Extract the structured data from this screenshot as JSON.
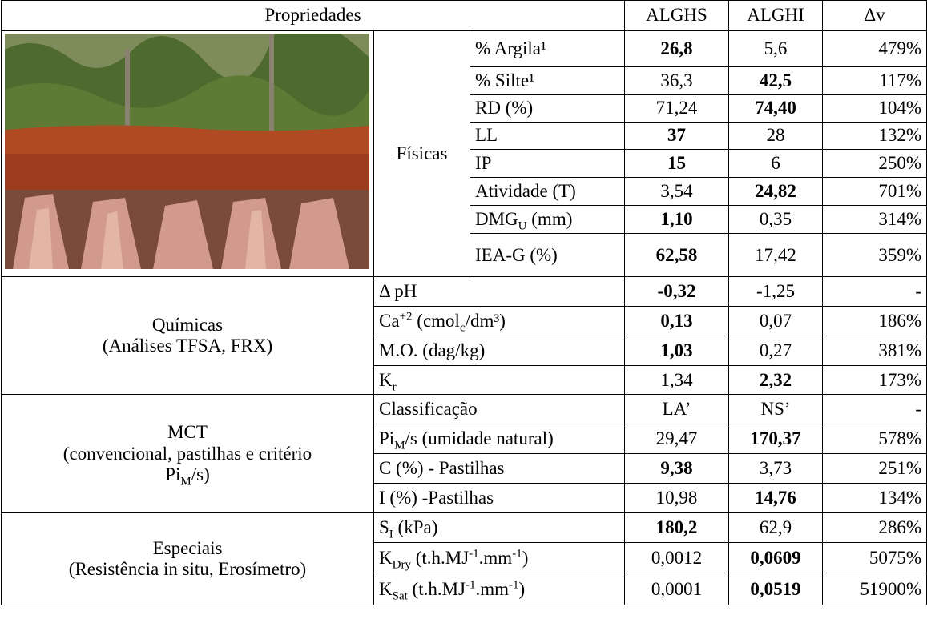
{
  "header": {
    "title": "Propriedades",
    "columns": [
      "ALGHS",
      "ALGHI",
      "Δv"
    ]
  },
  "sections": [
    {
      "name": [
        [
          "Físicas"
        ]
      ],
      "rows": [
        {
          "label": [
            "% Argila¹"
          ],
          "values": [
            "26,8",
            "5,6",
            "479%"
          ],
          "bold": 0
        },
        {
          "label": [
            "% Silte¹"
          ],
          "values": [
            "36,3",
            "42,5",
            "117%"
          ],
          "bold": 1
        },
        {
          "label": [
            "RD (%)"
          ],
          "values": [
            "71,24",
            "74,40",
            "104%"
          ],
          "bold": 1
        },
        {
          "label": [
            "LL"
          ],
          "values": [
            "37",
            "28",
            "132%"
          ],
          "bold": 0
        },
        {
          "label": [
            "IP"
          ],
          "values": [
            "15",
            "6",
            "250%"
          ],
          "bold": 0
        },
        {
          "label": [
            "Atividade (T)"
          ],
          "values": [
            "3,54",
            "24,82",
            "701%"
          ],
          "bold": 1
        },
        {
          "label": [
            "DMG",
            {
              "sub": "U"
            },
            " (mm)"
          ],
          "values": [
            "1,10",
            "0,35",
            "314%"
          ],
          "bold": 0
        },
        {
          "label": [
            "IEA-G (%)"
          ],
          "values": [
            "62,58",
            "17,42",
            "359%"
          ],
          "bold": 0
        }
      ]
    },
    {
      "name": [
        [
          "Químicas"
        ],
        [
          "(Análises TFSA, FRX)"
        ]
      ],
      "rows": [
        {
          "label": [
            "Δ pH"
          ],
          "values": [
            "-0,32",
            "-1,25",
            "-"
          ],
          "bold": 0
        },
        {
          "label": [
            "Ca",
            {
              "sup": "+2"
            },
            " (cmol",
            {
              "sub": "c"
            },
            "/dm³)"
          ],
          "values": [
            "0,13",
            "0,07",
            "186%"
          ],
          "bold": 0
        },
        {
          "label": [
            "M.O. (dag/kg)"
          ],
          "values": [
            "1,03",
            "0,27",
            "381%"
          ],
          "bold": 0
        },
        {
          "label": [
            "K",
            {
              "sub": "r"
            }
          ],
          "values": [
            "1,34",
            "2,32",
            "173%"
          ],
          "bold": 1
        }
      ]
    },
    {
      "name": [
        [
          "MCT"
        ],
        [
          "(convencional, pastilhas e critério"
        ],
        [
          "Pi",
          {
            "sub": "M"
          },
          "/s)"
        ]
      ],
      "rows": [
        {
          "label": [
            "Classificação"
          ],
          "values": [
            "LA’",
            "NS’",
            "-"
          ],
          "bold": null
        },
        {
          "label": [
            "Pi",
            {
              "sub": "M"
            },
            "/s (umidade natural)"
          ],
          "values": [
            "29,47",
            "170,37",
            "578%"
          ],
          "bold": 1
        },
        {
          "label": [
            "C (%) - Pastilhas"
          ],
          "values": [
            "9,38",
            "3,73",
            "251%"
          ],
          "bold": 0
        },
        {
          "label": [
            "I (%) -Pastilhas"
          ],
          "values": [
            "10,98",
            "14,76",
            "134%"
          ],
          "bold": 1
        }
      ]
    },
    {
      "name": [
        [
          "Especiais"
        ],
        [
          "(Resistência in situ, Erosímetro)"
        ]
      ],
      "rows": [
        {
          "label": [
            "S",
            {
              "sub": "I"
            },
            " (kPa)"
          ],
          "values": [
            "180,2",
            "62,9",
            "286%"
          ],
          "bold": 0
        },
        {
          "label": [
            "K",
            {
              "sub": "Dry"
            },
            " (t.h.MJ",
            {
              "sup": "-1"
            },
            ".mm",
            {
              "sup": "-1"
            },
            ")"
          ],
          "values": [
            "0,0012",
            "0,0609",
            "5075%"
          ],
          "bold": 1
        },
        {
          "label": [
            "K",
            {
              "sub": "Sat"
            },
            " (t.h.MJ",
            {
              "sup": "-1"
            },
            ".mm",
            {
              "sup": "-1"
            },
            ")"
          ],
          "values": [
            "0,0001",
            "0,0519",
            "51900%"
          ],
          "bold": 1
        }
      ]
    }
  ]
}
